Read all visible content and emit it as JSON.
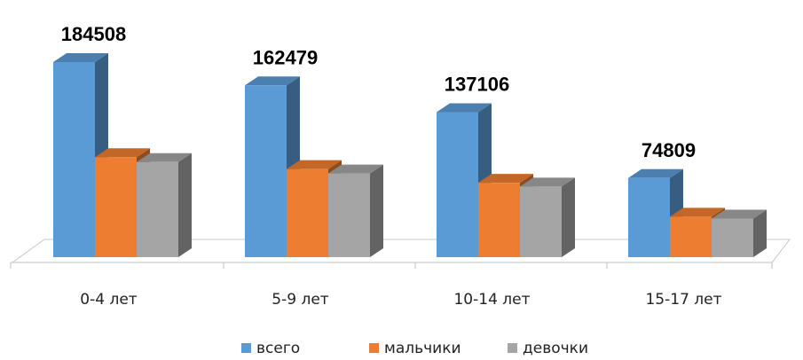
{
  "chart_data": {
    "type": "bar",
    "categories": [
      "0-4 лет",
      "5-9 лет",
      "10-14 лет",
      "15-17 лет"
    ],
    "series": [
      {
        "name": "всего",
        "color": "#5B9BD5",
        "values": [
          184508,
          162479,
          137106,
          74809
        ]
      },
      {
        "name": "мальчики",
        "color": "#ED7D31",
        "values": [
          94600,
          83300,
          70300,
          38300
        ]
      },
      {
        "name": "девочки",
        "color": "#A5A5A5",
        "values": [
          89900,
          79200,
          66800,
          36500
        ]
      }
    ],
    "data_labels": [
      "184508",
      "162479",
      "137106",
      "74809"
    ],
    "legend_position": "bottom",
    "grid": false,
    "three_d": true
  }
}
